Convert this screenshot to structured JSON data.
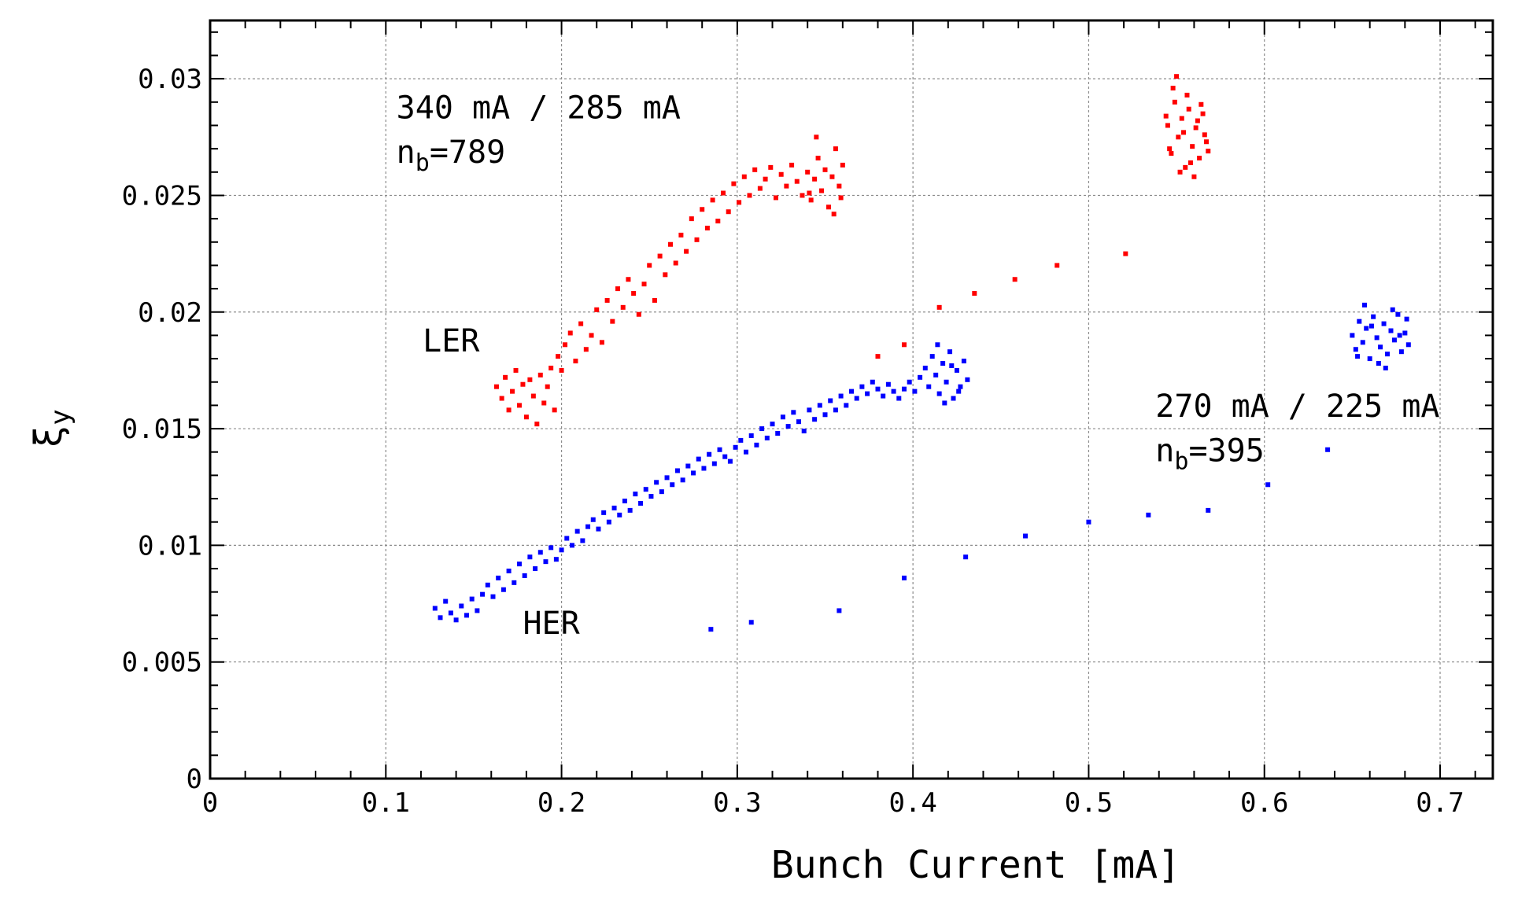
{
  "chart_data": {
    "type": "scatter",
    "title": "",
    "xlabel": "Bunch Current [mA]",
    "ylabel_main": "ξ",
    "ylabel_sub": "y",
    "xlim": [
      0,
      0.73
    ],
    "ylim": [
      0,
      0.0325
    ],
    "x_ticks": [
      0,
      0.1,
      0.2,
      0.3,
      0.4,
      0.5,
      0.6,
      0.7
    ],
    "x_tick_labels": [
      "0",
      "0.1",
      "0.2",
      "0.3",
      "0.4",
      "0.5",
      "0.6",
      "0.7"
    ],
    "y_ticks": [
      0,
      0.005,
      0.01,
      0.015,
      0.02,
      0.025,
      0.03
    ],
    "y_tick_labels": [
      "0",
      "0.005",
      "0.01",
      "0.015",
      "0.02",
      "0.025",
      "0.03"
    ],
    "grid": true,
    "series": [
      {
        "name": "LER",
        "color": "#ff0000",
        "points": [
          [
            0.163,
            0.0168
          ],
          [
            0.166,
            0.0163
          ],
          [
            0.168,
            0.0172
          ],
          [
            0.17,
            0.0158
          ],
          [
            0.172,
            0.0166
          ],
          [
            0.174,
            0.0175
          ],
          [
            0.176,
            0.016
          ],
          [
            0.178,
            0.0169
          ],
          [
            0.18,
            0.0155
          ],
          [
            0.182,
            0.0171
          ],
          [
            0.184,
            0.0164
          ],
          [
            0.186,
            0.0152
          ],
          [
            0.188,
            0.0173
          ],
          [
            0.19,
            0.0161
          ],
          [
            0.192,
            0.0168
          ],
          [
            0.194,
            0.0176
          ],
          [
            0.196,
            0.0158
          ],
          [
            0.198,
            0.0181
          ],
          [
            0.2,
            0.0175
          ],
          [
            0.202,
            0.0186
          ],
          [
            0.205,
            0.0191
          ],
          [
            0.208,
            0.0179
          ],
          [
            0.211,
            0.0195
          ],
          [
            0.214,
            0.0184
          ],
          [
            0.217,
            0.019
          ],
          [
            0.22,
            0.0201
          ],
          [
            0.223,
            0.0187
          ],
          [
            0.226,
            0.0205
          ],
          [
            0.229,
            0.0196
          ],
          [
            0.232,
            0.021
          ],
          [
            0.235,
            0.0202
          ],
          [
            0.238,
            0.0214
          ],
          [
            0.241,
            0.0208
          ],
          [
            0.244,
            0.0199
          ],
          [
            0.247,
            0.0212
          ],
          [
            0.25,
            0.022
          ],
          [
            0.253,
            0.0205
          ],
          [
            0.256,
            0.0224
          ],
          [
            0.259,
            0.0216
          ],
          [
            0.262,
            0.0229
          ],
          [
            0.265,
            0.0221
          ],
          [
            0.268,
            0.0233
          ],
          [
            0.271,
            0.0226
          ],
          [
            0.274,
            0.024
          ],
          [
            0.277,
            0.0231
          ],
          [
            0.28,
            0.0244
          ],
          [
            0.283,
            0.0236
          ],
          [
            0.286,
            0.0248
          ],
          [
            0.289,
            0.0239
          ],
          [
            0.292,
            0.0251
          ],
          [
            0.295,
            0.0243
          ],
          [
            0.298,
            0.0255
          ],
          [
            0.301,
            0.0247
          ],
          [
            0.304,
            0.0258
          ],
          [
            0.307,
            0.025
          ],
          [
            0.31,
            0.0261
          ],
          [
            0.313,
            0.0253
          ],
          [
            0.316,
            0.0257
          ],
          [
            0.319,
            0.0262
          ],
          [
            0.322,
            0.0249
          ],
          [
            0.325,
            0.0259
          ],
          [
            0.328,
            0.0254
          ],
          [
            0.331,
            0.0263
          ],
          [
            0.334,
            0.0256
          ],
          [
            0.337,
            0.025
          ],
          [
            0.34,
            0.026
          ],
          [
            0.342,
            0.0248
          ],
          [
            0.344,
            0.0257
          ],
          [
            0.346,
            0.0266
          ],
          [
            0.348,
            0.0252
          ],
          [
            0.35,
            0.0261
          ],
          [
            0.352,
            0.0245
          ],
          [
            0.354,
            0.0258
          ],
          [
            0.356,
            0.027
          ],
          [
            0.358,
            0.0254
          ],
          [
            0.36,
            0.0263
          ],
          [
            0.345,
            0.0275
          ],
          [
            0.355,
            0.0242
          ],
          [
            0.341,
            0.0251
          ],
          [
            0.359,
            0.0249
          ],
          [
            0.38,
            0.0181
          ],
          [
            0.395,
            0.0186
          ],
          [
            0.415,
            0.0202
          ],
          [
            0.435,
            0.0208
          ],
          [
            0.458,
            0.0214
          ],
          [
            0.482,
            0.022
          ],
          [
            0.521,
            0.0225
          ],
          [
            0.545,
            0.028
          ],
          [
            0.547,
            0.0268
          ],
          [
            0.549,
            0.029
          ],
          [
            0.551,
            0.0275
          ],
          [
            0.553,
            0.0283
          ],
          [
            0.555,
            0.0262
          ],
          [
            0.557,
            0.0287
          ],
          [
            0.559,
            0.0271
          ],
          [
            0.561,
            0.0279
          ],
          [
            0.563,
            0.0266
          ],
          [
            0.565,
            0.0285
          ],
          [
            0.567,
            0.0273
          ],
          [
            0.548,
            0.0296
          ],
          [
            0.552,
            0.026
          ],
          [
            0.556,
            0.0293
          ],
          [
            0.56,
            0.0258
          ],
          [
            0.564,
            0.0289
          ],
          [
            0.546,
            0.027
          ],
          [
            0.554,
            0.0277
          ],
          [
            0.562,
            0.0282
          ],
          [
            0.55,
            0.0301
          ],
          [
            0.558,
            0.0264
          ],
          [
            0.566,
            0.0276
          ],
          [
            0.544,
            0.0284
          ],
          [
            0.568,
            0.0269
          ]
        ]
      },
      {
        "name": "HER",
        "color": "#0000ff",
        "points": [
          [
            0.128,
            0.0073
          ],
          [
            0.131,
            0.0069
          ],
          [
            0.134,
            0.0076
          ],
          [
            0.137,
            0.0071
          ],
          [
            0.14,
            0.0068
          ],
          [
            0.143,
            0.0074
          ],
          [
            0.146,
            0.007
          ],
          [
            0.149,
            0.0077
          ],
          [
            0.152,
            0.0072
          ],
          [
            0.155,
            0.0079
          ],
          [
            0.158,
            0.0083
          ],
          [
            0.161,
            0.0078
          ],
          [
            0.164,
            0.0086
          ],
          [
            0.167,
            0.0081
          ],
          [
            0.17,
            0.0089
          ],
          [
            0.173,
            0.0084
          ],
          [
            0.176,
            0.0092
          ],
          [
            0.179,
            0.0087
          ],
          [
            0.182,
            0.0095
          ],
          [
            0.185,
            0.009
          ],
          [
            0.188,
            0.0097
          ],
          [
            0.191,
            0.0093
          ],
          [
            0.194,
            0.0099
          ],
          [
            0.197,
            0.0094
          ],
          [
            0.2,
            0.0098
          ],
          [
            0.203,
            0.0103
          ],
          [
            0.206,
            0.01
          ],
          [
            0.209,
            0.0106
          ],
          [
            0.212,
            0.0102
          ],
          [
            0.215,
            0.0108
          ],
          [
            0.218,
            0.0111
          ],
          [
            0.221,
            0.0107
          ],
          [
            0.224,
            0.0114
          ],
          [
            0.227,
            0.011
          ],
          [
            0.23,
            0.0116
          ],
          [
            0.233,
            0.0113
          ],
          [
            0.236,
            0.0119
          ],
          [
            0.239,
            0.0115
          ],
          [
            0.242,
            0.0122
          ],
          [
            0.245,
            0.0118
          ],
          [
            0.248,
            0.0124
          ],
          [
            0.251,
            0.0121
          ],
          [
            0.254,
            0.0127
          ],
          [
            0.257,
            0.0123
          ],
          [
            0.26,
            0.0129
          ],
          [
            0.263,
            0.0126
          ],
          [
            0.266,
            0.0132
          ],
          [
            0.269,
            0.0128
          ],
          [
            0.272,
            0.0134
          ],
          [
            0.275,
            0.0131
          ],
          [
            0.278,
            0.0137
          ],
          [
            0.281,
            0.0133
          ],
          [
            0.284,
            0.0139
          ],
          [
            0.287,
            0.0135
          ],
          [
            0.29,
            0.0141
          ],
          [
            0.293,
            0.0138
          ],
          [
            0.296,
            0.0136
          ],
          [
            0.299,
            0.0142
          ],
          [
            0.302,
            0.0145
          ],
          [
            0.305,
            0.014
          ],
          [
            0.308,
            0.0147
          ],
          [
            0.311,
            0.0143
          ],
          [
            0.314,
            0.015
          ],
          [
            0.317,
            0.0146
          ],
          [
            0.32,
            0.0152
          ],
          [
            0.323,
            0.0148
          ],
          [
            0.326,
            0.0155
          ],
          [
            0.329,
            0.0151
          ],
          [
            0.332,
            0.0157
          ],
          [
            0.335,
            0.0153
          ],
          [
            0.338,
            0.0149
          ],
          [
            0.341,
            0.0158
          ],
          [
            0.344,
            0.0154
          ],
          [
            0.347,
            0.016
          ],
          [
            0.35,
            0.0156
          ],
          [
            0.353,
            0.0162
          ],
          [
            0.356,
            0.0158
          ],
          [
            0.359,
            0.0164
          ],
          [
            0.362,
            0.016
          ],
          [
            0.365,
            0.0166
          ],
          [
            0.368,
            0.0163
          ],
          [
            0.371,
            0.0168
          ],
          [
            0.374,
            0.0165
          ],
          [
            0.377,
            0.017
          ],
          [
            0.38,
            0.0167
          ],
          [
            0.383,
            0.0164
          ],
          [
            0.386,
            0.0169
          ],
          [
            0.389,
            0.0166
          ],
          [
            0.392,
            0.0163
          ],
          [
            0.395,
            0.0167
          ],
          [
            0.398,
            0.017
          ],
          [
            0.401,
            0.0166
          ],
          [
            0.404,
            0.0172
          ],
          [
            0.407,
            0.0176
          ],
          [
            0.409,
            0.0168
          ],
          [
            0.411,
            0.0181
          ],
          [
            0.413,
            0.0173
          ],
          [
            0.415,
            0.0165
          ],
          [
            0.417,
            0.0178
          ],
          [
            0.419,
            0.017
          ],
          [
            0.421,
            0.0183
          ],
          [
            0.423,
            0.0163
          ],
          [
            0.425,
            0.0175
          ],
          [
            0.427,
            0.0168
          ],
          [
            0.429,
            0.0179
          ],
          [
            0.431,
            0.0171
          ],
          [
            0.414,
            0.0186
          ],
          [
            0.418,
            0.0161
          ],
          [
            0.422,
            0.0177
          ],
          [
            0.426,
            0.0166
          ],
          [
            0.285,
            0.0064
          ],
          [
            0.308,
            0.0067
          ],
          [
            0.358,
            0.0072
          ],
          [
            0.395,
            0.0086
          ],
          [
            0.43,
            0.0095
          ],
          [
            0.464,
            0.0104
          ],
          [
            0.5,
            0.011
          ],
          [
            0.534,
            0.0113
          ],
          [
            0.568,
            0.0115
          ],
          [
            0.602,
            0.0126
          ],
          [
            0.636,
            0.0141
          ],
          [
            0.65,
            0.019
          ],
          [
            0.652,
            0.0184
          ],
          [
            0.654,
            0.0196
          ],
          [
            0.656,
            0.0187
          ],
          [
            0.658,
            0.0193
          ],
          [
            0.66,
            0.018
          ],
          [
            0.662,
            0.0198
          ],
          [
            0.664,
            0.0189
          ],
          [
            0.666,
            0.0185
          ],
          [
            0.668,
            0.0195
          ],
          [
            0.67,
            0.0182
          ],
          [
            0.672,
            0.0192
          ],
          [
            0.674,
            0.0188
          ],
          [
            0.676,
            0.0199
          ],
          [
            0.678,
            0.0183
          ],
          [
            0.68,
            0.0191
          ],
          [
            0.682,
            0.0186
          ],
          [
            0.657,
            0.0203
          ],
          [
            0.665,
            0.0178
          ],
          [
            0.673,
            0.0201
          ],
          [
            0.661,
            0.0194
          ],
          [
            0.669,
            0.0176
          ],
          [
            0.677,
            0.019
          ],
          [
            0.653,
            0.0181
          ],
          [
            0.681,
            0.0197
          ]
        ]
      }
    ],
    "annotations": [
      {
        "text": "340 mA / 285 mA",
        "x": 0.106,
        "y": 0.0283
      },
      {
        "text_main": "n",
        "text_sub": "b",
        "text_tail": "=789",
        "x": 0.106,
        "y": 0.0264
      },
      {
        "text": "LER",
        "x": 0.121,
        "y": 0.0183
      },
      {
        "text": "HER",
        "x": 0.178,
        "y": 0.0062
      },
      {
        "text": "270 mA / 225 mA",
        "x": 0.538,
        "y": 0.0155
      },
      {
        "text_main": "n",
        "text_sub": "b",
        "text_tail": "=395",
        "x": 0.538,
        "y": 0.0136
      }
    ]
  }
}
